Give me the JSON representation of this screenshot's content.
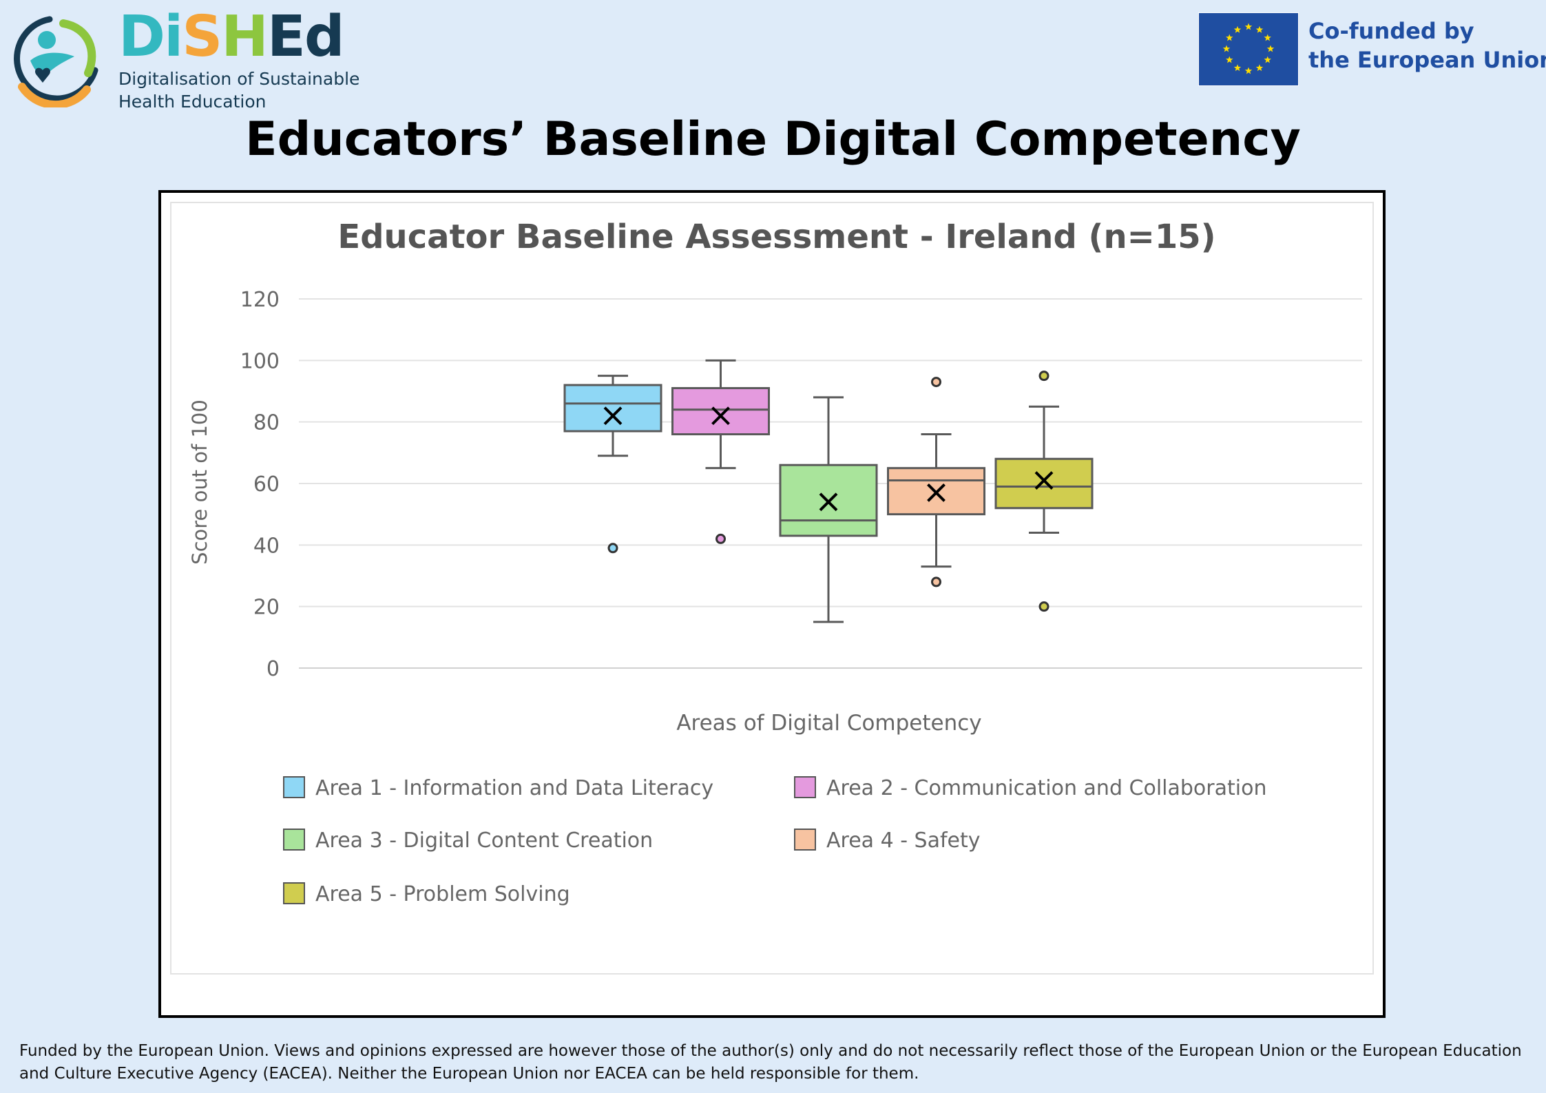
{
  "logo": {
    "word_parts": [
      "Di",
      "S",
      "H",
      "Ed"
    ],
    "tagline_lines": [
      "Digitalisation of Sustainable",
      "Health Education"
    ]
  },
  "eu_badge": {
    "lines": [
      "Co-funded by",
      "the European Union"
    ]
  },
  "page_title": "Educators’ Baseline Digital Competency",
  "chart_data": {
    "type": "box",
    "title": "Educator Baseline Assessment - Ireland (n=15)",
    "xlabel": "Areas of Digital Competency",
    "ylabel": "Score out of 100",
    "ylim": [
      0,
      120
    ],
    "yticks": [
      0,
      20,
      40,
      60,
      80,
      100,
      120
    ],
    "grid": true,
    "legend_position": "bottom",
    "series": [
      {
        "name": "Area 1 - Information and Data Literacy",
        "color": "#8fd7f5",
        "min": 69,
        "q1": 77,
        "median": 86,
        "q3": 92,
        "max": 95,
        "mean": 82,
        "outliers": [
          39
        ]
      },
      {
        "name": "Area 2 - Communication and Collaboration",
        "color": "#e49ade",
        "min": 65,
        "q1": 76,
        "median": 84,
        "q3": 91,
        "max": 100,
        "mean": 82,
        "outliers": [
          42
        ]
      },
      {
        "name": "Area 3 - Digital Content Creation",
        "color": "#a9e49b",
        "min": 15,
        "q1": 43,
        "median": 48,
        "q3": 66,
        "max": 88,
        "mean": 54,
        "outliers": []
      },
      {
        "name": "Area 4 - Safety",
        "color": "#f7c3a1",
        "min": 33,
        "q1": 50,
        "median": 61,
        "q3": 65,
        "max": 76,
        "mean": 57,
        "outliers": [
          93,
          28
        ]
      },
      {
        "name": "Area 5 - Problem Solving",
        "color": "#d0cd4f",
        "min": 44,
        "q1": 52,
        "median": 59,
        "q3": 68,
        "max": 85,
        "mean": 61,
        "outliers": [
          95,
          20
        ]
      }
    ]
  },
  "footer": {
    "lines": [
      "Funded by the European Union. Views and opinions expressed are however those of the author(s) only and do not necessarily reflect those of the European Union or the European Education",
      "and Culture Executive Agency (EACEA). Neither the European Union nor EACEA can be held responsible for them."
    ]
  },
  "colors": {
    "background": "#deebf9",
    "eu_blue": "#1f4ea1",
    "eu_star": "#ffdd00",
    "logo_navy": "#163a52"
  }
}
